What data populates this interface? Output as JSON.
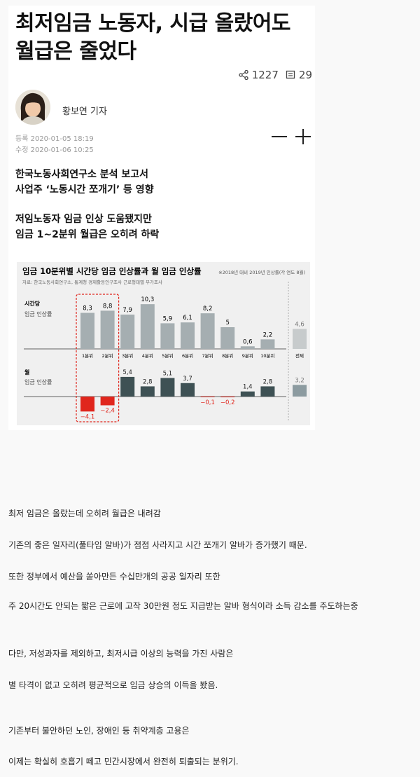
{
  "article": {
    "headline_line1": "최저임금 노동자, 시급 올랐어도",
    "headline_line2": "월급은 줄었다",
    "share_count": "1227",
    "comment_count": "29",
    "author": "황보연 기자",
    "registered": "등록 2020-01-05 18:19",
    "modified": "수정 2020-01-06 10:25",
    "summary": [
      [
        "한국노동사회연구소 분석 보고서",
        "사업주 ‘노동시간 쪼개기’ 등 영향"
      ],
      [
        "저임노동자 임금 인상 도움됐지만",
        "임금 1~2분위 월급은 오히려 하락"
      ]
    ],
    "icons": [
      "share-icon",
      "comment-icon",
      "font-decrease-icon",
      "font-increase-icon"
    ]
  },
  "chart_data": {
    "type": "bar",
    "title": "임금 10분위별 시간당 임금 인상률과 월 임금 인상률",
    "note": "※2018년 대비 2019년 인상률(각 연도 8월)",
    "source": "자료: 한국노동사회연구소, 통계청 경제활동인구조사 근로형태별 부가조사",
    "categories": [
      "1분위",
      "2분위",
      "3분위",
      "4분위",
      "5분위",
      "6분위",
      "7분위",
      "8분위",
      "9분위",
      "10분위"
    ],
    "total_label": "전체",
    "series": [
      {
        "name": "시간당",
        "sublabel": "임금 인상률",
        "values": [
          8.3,
          8.8,
          7.9,
          10.3,
          5.9,
          6.1,
          8.2,
          5,
          0.6,
          2.2
        ],
        "total": 4.6,
        "labels": [
          "8,3",
          "8,8",
          "7,9",
          "10,3",
          "5,9",
          "6,1",
          "8,2",
          "5",
          "0,6",
          "2,2"
        ],
        "total_label": "4,6"
      },
      {
        "name": "월",
        "sublabel": "임금 인상률",
        "values": [
          -4.1,
          -2.4,
          5.4,
          2.8,
          5.1,
          3.7,
          -0.1,
          -0.2,
          1.4,
          2.8
        ],
        "total": 3.2,
        "labels": [
          "−4,1",
          "−2,4",
          "5,4",
          "2,8",
          "5,1",
          "3,7",
          "−0,1",
          "−0,2",
          "1,4",
          "2,8"
        ],
        "total_label": "3,2"
      }
    ],
    "colors": {
      "hourly": "#a5aeb1",
      "monthly": "#3e5154",
      "negative": "#e0261d",
      "highlight": "#e0261d",
      "title": "#1a1a1a"
    }
  },
  "body": [
    "최저 임금은 올랐는데 오히려 월급은 내려감",
    "기존의 좋은 일자리(풀타임 알바)가 점점 사라지고 시간 쪼개기 알바가 증가했기 때문.",
    "또한 정부에서 예산을 쏟아만든 수십만개의 공공 일자리 또한",
    "주 20시간도 안되는 짧은 근로에 고작 30만원 정도 지급받는 알바 형식이라 소득 감소를 주도하는중",
    "다만, 저성과자를 제외하고, 최저시급 이상의 능력을 가진 사람은",
    "별 타격이 없고 오히려 평균적으로 임금 상승의 이득을 봤음.",
    "기존부터 불안하던 노인, 장애인 등 취약계층 고용은",
    "이제는 확실히 호흡기 떼고 민간시장에서 완전히 퇴출되는 분위기."
  ]
}
